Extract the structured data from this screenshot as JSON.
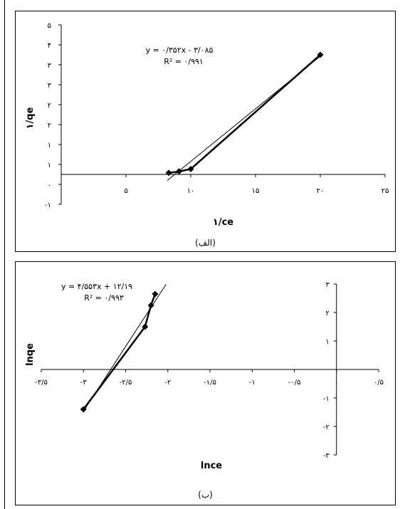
{
  "chart_data": [
    {
      "type": "scatter",
      "xlabel": "۱/ce",
      "ylabel": "۱/qe",
      "caption": "(الف)",
      "xlim": [
        0,
        25
      ],
      "ylim": [
        -1,
        5
      ],
      "x_tick_labels": [
        "۵",
        "۱۰",
        "۱۵",
        "۲۰",
        "۲۵"
      ],
      "y_tick_labels": [
        "-۱",
        "۰",
        "۱",
        "۱",
        "۲",
        "۲",
        "۳",
        "۳",
        "۴",
        "۵"
      ],
      "points": [
        {
          "x": 8.3,
          "y": 0.05
        },
        {
          "x": 9.1,
          "y": 0.1
        },
        {
          "x": 10.0,
          "y": 0.18
        },
        {
          "x": 20.0,
          "y": 4.0
        }
      ],
      "trendline": {
        "slope": 0.352,
        "intercept": -3.085,
        "x_from": 8.2,
        "x_to": 20.0
      },
      "equation": "y = ۰/۳۵۲x - ۳/۰۸۵",
      "r2": "R² = ۰/۹۹۱",
      "grid": false
    },
    {
      "type": "scatter",
      "xlabel": "lnce",
      "ylabel": "lnqe",
      "caption": "(ب)",
      "xlim": [
        -3.5,
        0.5
      ],
      "ylim": [
        -3,
        3
      ],
      "x_tick_labels": [
        "-۳/۵",
        "-۳",
        "-۲/۵",
        "-۲",
        "-۱/۵",
        "-۱",
        "-۰/۵",
        "۰",
        "۰/۵"
      ],
      "y_tick_labels": [
        "-۳",
        "-۲",
        "-۱",
        "۱",
        "۲",
        "۳"
      ],
      "points": [
        {
          "x": -3.0,
          "y": -1.4
        },
        {
          "x": -2.27,
          "y": 1.5
        },
        {
          "x": -2.2,
          "y": 2.25
        },
        {
          "x": -2.15,
          "y": 2.65
        }
      ],
      "trendline": {
        "slope": 4.553,
        "intercept": 12.19,
        "x_from": -3.0,
        "x_to": -2.02
      },
      "equation": "y = ۴/۵۵۳x + ۱۲/۱۹",
      "r2": "R² = ۰/۹۹۳",
      "grid": false
    }
  ]
}
